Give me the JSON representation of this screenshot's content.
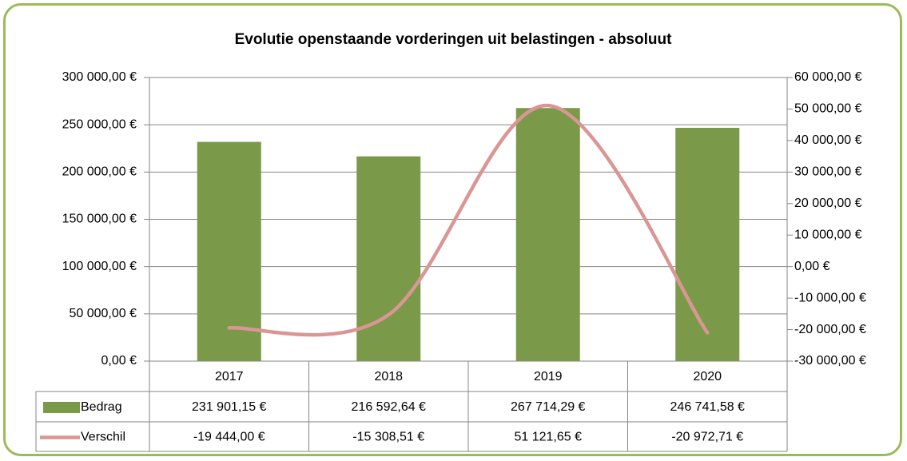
{
  "chart_data": {
    "type": "bar",
    "title": "Evolutie openstaande vorderingen uit belastingen - absoluut",
    "categories": [
      "2017",
      "2018",
      "2019",
      "2020"
    ],
    "series": [
      {
        "name": "Bedrag",
        "type": "bar",
        "color": "#7a9a49",
        "values": [
          231901.15,
          216592.64,
          267714.29,
          246741.58
        ],
        "value_labels": [
          "231 901,15 €",
          "216 592,64 €",
          "267 714,29 €",
          "246 741,58 €"
        ]
      },
      {
        "name": "Verschil",
        "type": "line",
        "axis": "y2",
        "color": "#d99694",
        "values": [
          -19444.0,
          -15308.51,
          51121.65,
          -20972.71
        ],
        "value_labels": [
          "-19 444,00 €",
          "-15 308,51 €",
          "51 121,65 €",
          "-20 972,71 €"
        ]
      }
    ],
    "ylim": [
      0,
      300000
    ],
    "yticks": [
      {
        "value": 0,
        "label": "0,00 €"
      },
      {
        "value": 50000,
        "label": "50 000,00 €"
      },
      {
        "value": 100000,
        "label": "100 000,00 €"
      },
      {
        "value": 150000,
        "label": "150 000,00 €"
      },
      {
        "value": 200000,
        "label": "200 000,00 €"
      },
      {
        "value": 250000,
        "label": "250 000,00 €"
      },
      {
        "value": 300000,
        "label": "300 000,00 €"
      }
    ],
    "y2lim": [
      -30000,
      60000
    ],
    "y2ticks": [
      {
        "value": -30000,
        "label": "-30 000,00 €"
      },
      {
        "value": -20000,
        "label": "-20 000,00 €"
      },
      {
        "value": -10000,
        "label": "-10 000,00 €"
      },
      {
        "value": 0,
        "label": "0,00 €"
      },
      {
        "value": 10000,
        "label": "10 000,00 €"
      },
      {
        "value": 20000,
        "label": "20 000,00 €"
      },
      {
        "value": 30000,
        "label": "30 000,00 €"
      },
      {
        "value": 40000,
        "label": "40 000,00 €"
      },
      {
        "value": 50000,
        "label": "50 000,00 €"
      },
      {
        "value": 60000,
        "label": "60 000,00 €"
      }
    ],
    "grid": true
  }
}
